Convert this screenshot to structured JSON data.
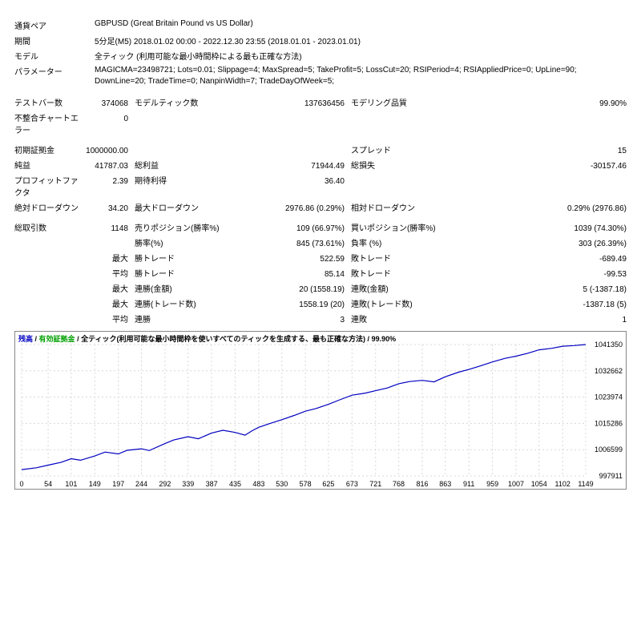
{
  "info": {
    "pair_label": "通貨ペア",
    "pair_value": "GBPUSD (Great Britain Pound vs US Dollar)",
    "period_label": "期間",
    "period_value": "5分足(M5) 2018.01.02 00:00 - 2022.12.30 23:55 (2018.01.01 - 2023.01.01)",
    "model_label": "モデル",
    "model_value": "全ティック (利用可能な最小時間枠による最も正確な方法)",
    "param_label": "パラメーター",
    "param_value": "MAGICMA=23498721; Lots=0.01; Slippage=4; MaxSpread=5; TakeProfit=5; LossCut=20; RSIPeriod=4; RSIAppliedPrice=0; UpLine=90; DownLine=20; TradeTime=0; NanpinWidth=7; TradeDayOfWeek=5;"
  },
  "stats": [
    {
      "l1": "テストバー数",
      "v1": "374068",
      "l2": "モデルティック数",
      "v2": "137636456",
      "l3": "モデリング品質",
      "v3": "99.90%"
    },
    {
      "l1": "不整合チャートエラー",
      "v1": "0",
      "l2": "",
      "v2": "",
      "l3": "",
      "v3": ""
    },
    {
      "spacer": true
    },
    {
      "l1": "初期証拠金",
      "v1": "1000000.00",
      "l2": "",
      "v2": "",
      "l3": "スプレッド",
      "v3": "15"
    },
    {
      "l1": "純益",
      "v1": "41787.03",
      "l2": "総利益",
      "v2": "71944.49",
      "l3": "総損失",
      "v3": "-30157.46"
    },
    {
      "l1": "プロフィットファクタ",
      "v1": "2.39",
      "l2": "期待利得",
      "v2": "36.40",
      "l3": "",
      "v3": ""
    },
    {
      "l1": "絶対ドローダウン",
      "v1": "34.20",
      "l2": "最大ドローダウン",
      "v2": "2976.86 (0.29%)",
      "l3": "相対ドローダウン",
      "v3": "0.29% (2976.86)"
    },
    {
      "spacer": true
    },
    {
      "l1": "総取引数",
      "v1": "1148",
      "l2": "売りポジション(勝率%)",
      "v2": "109 (66.97%)",
      "l3": "買いポジション(勝率%)",
      "v3": "1039 (74.30%)"
    },
    {
      "l1": "",
      "v1": "",
      "l2": "勝率(%)",
      "v2": "845 (73.61%)",
      "l3": "負率 (%)",
      "v3": "303 (26.39%)"
    },
    {
      "l1": "",
      "v1": "最大",
      "l2": "勝トレード",
      "v2": "522.59",
      "l3": "敗トレード",
      "v3": "-689.49"
    },
    {
      "l1": "",
      "v1": "平均",
      "l2": "勝トレード",
      "v2": "85.14",
      "l3": "敗トレード",
      "v3": "-99.53"
    },
    {
      "l1": "",
      "v1": "最大",
      "l2": "連勝(金額)",
      "v2": "20 (1558.19)",
      "l3": "連敗(金額)",
      "v3": "5 (-1387.18)"
    },
    {
      "l1": "",
      "v1": "最大",
      "l2": "連勝(トレード数)",
      "v2": "1558.19 (20)",
      "l3": "連敗(トレード数)",
      "v3": "-1387.18 (5)"
    },
    {
      "l1": "",
      "v1": "平均",
      "l2": "連勝",
      "v2": "3",
      "l3": "連敗",
      "v3": "1"
    }
  ],
  "chart": {
    "legend_balance": "残高",
    "legend_equity": "有効証拠金",
    "legend_rest": "全ティック(利用可能な最小時間枠を使いすべてのティックを生成する、最も正確な方法)",
    "legend_quality": "99.90%",
    "x_ticks": [
      "0",
      "54",
      "101",
      "149",
      "197",
      "244",
      "292",
      "339",
      "387",
      "435",
      "483",
      "530",
      "578",
      "625",
      "673",
      "721",
      "768",
      "816",
      "863",
      "911",
      "959",
      "1007",
      "1054",
      "1102",
      "1149"
    ],
    "y_ticks": [
      "1041350",
      "1032662",
      "1023974",
      "1015286",
      "1006599",
      "997911"
    ],
    "y_min": 997911,
    "y_max": 1041350,
    "x_min": 0,
    "x_max": 1149,
    "line_color": "#0000c0",
    "grid_color": "#d8d8d8",
    "axis_color": "#888888",
    "background_color": "#ffffff",
    "series": [
      {
        "x": 0,
        "y": 1000000
      },
      {
        "x": 30,
        "y": 1000600
      },
      {
        "x": 54,
        "y": 1001500
      },
      {
        "x": 80,
        "y": 1002400
      },
      {
        "x": 101,
        "y": 1003600
      },
      {
        "x": 120,
        "y": 1003100
      },
      {
        "x": 149,
        "y": 1004500
      },
      {
        "x": 170,
        "y": 1005800
      },
      {
        "x": 197,
        "y": 1005200
      },
      {
        "x": 215,
        "y": 1006400
      },
      {
        "x": 244,
        "y": 1006900
      },
      {
        "x": 260,
        "y": 1006300
      },
      {
        "x": 292,
        "y": 1008600
      },
      {
        "x": 310,
        "y": 1009800
      },
      {
        "x": 339,
        "y": 1010900
      },
      {
        "x": 360,
        "y": 1010200
      },
      {
        "x": 387,
        "y": 1012100
      },
      {
        "x": 410,
        "y": 1013000
      },
      {
        "x": 435,
        "y": 1012300
      },
      {
        "x": 455,
        "y": 1011400
      },
      {
        "x": 470,
        "y": 1012900
      },
      {
        "x": 483,
        "y": 1014000
      },
      {
        "x": 505,
        "y": 1015200
      },
      {
        "x": 530,
        "y": 1016500
      },
      {
        "x": 555,
        "y": 1017900
      },
      {
        "x": 578,
        "y": 1019300
      },
      {
        "x": 600,
        "y": 1020200
      },
      {
        "x": 625,
        "y": 1021600
      },
      {
        "x": 650,
        "y": 1023200
      },
      {
        "x": 673,
        "y": 1024600
      },
      {
        "x": 700,
        "y": 1025300
      },
      {
        "x": 721,
        "y": 1026100
      },
      {
        "x": 745,
        "y": 1027000
      },
      {
        "x": 768,
        "y": 1028400
      },
      {
        "x": 790,
        "y": 1029100
      },
      {
        "x": 816,
        "y": 1029500
      },
      {
        "x": 840,
        "y": 1029000
      },
      {
        "x": 863,
        "y": 1030700
      },
      {
        "x": 890,
        "y": 1032200
      },
      {
        "x": 911,
        "y": 1033100
      },
      {
        "x": 935,
        "y": 1034300
      },
      {
        "x": 959,
        "y": 1035600
      },
      {
        "x": 985,
        "y": 1036800
      },
      {
        "x": 1007,
        "y": 1037500
      },
      {
        "x": 1030,
        "y": 1038400
      },
      {
        "x": 1054,
        "y": 1039600
      },
      {
        "x": 1080,
        "y": 1040100
      },
      {
        "x": 1102,
        "y": 1040800
      },
      {
        "x": 1125,
        "y": 1041000
      },
      {
        "x": 1149,
        "y": 1041350
      }
    ]
  }
}
